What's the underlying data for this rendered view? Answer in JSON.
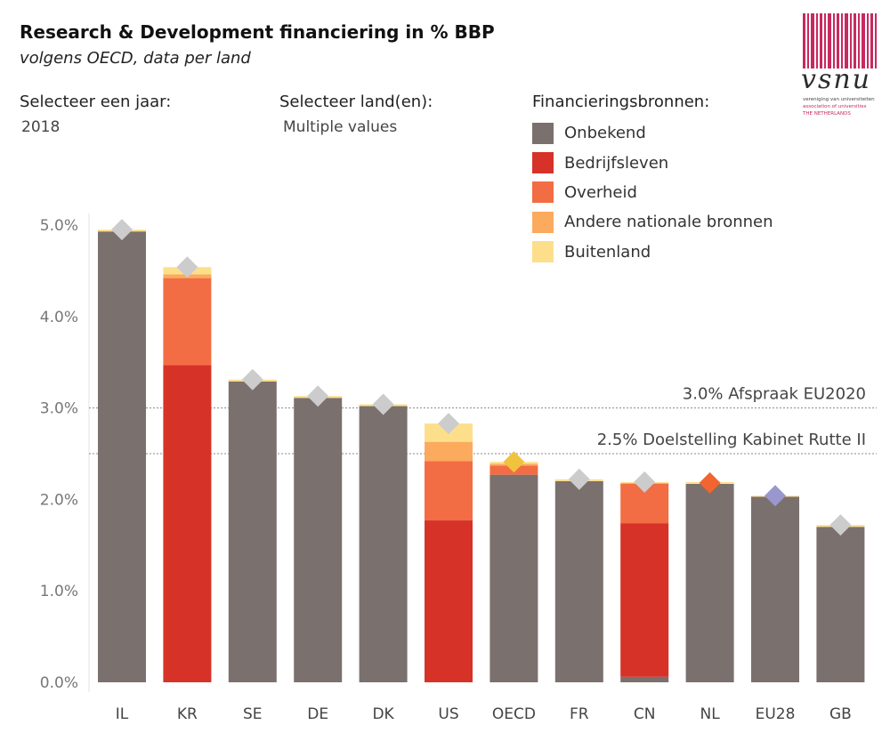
{
  "header": {
    "title": "Research & Development financiering in % BBP",
    "subtitle": "volgens OECD,  data per land"
  },
  "filters": {
    "year_label": "Selecteer een jaar:",
    "year_value": "2018",
    "country_label": "Selecteer land(en):",
    "country_value": "Multiple values"
  },
  "legend": {
    "title": "Financieringsbronnen:",
    "items": [
      {
        "label": "Onbekend",
        "color": "#7a706d"
      },
      {
        "label": "Bedrijfsleven",
        "color": "#d63228"
      },
      {
        "label": "Overheid",
        "color": "#f26d43"
      },
      {
        "label": "Andere nationale bronnen",
        "color": "#fbaa5e"
      },
      {
        "label": "Buitenland",
        "color": "#fddf8b"
      }
    ]
  },
  "logo": {
    "text": "vsnu",
    "line1": "vereniging van universiteiten",
    "line2": "association of universities",
    "line3": "THE NETHERLANDS"
  },
  "chart_data": {
    "type": "bar",
    "stacked": true,
    "categories": [
      "IL",
      "KR",
      "SE",
      "DE",
      "DK",
      "US",
      "OECD",
      "FR",
      "CN",
      "NL",
      "EU28",
      "GB"
    ],
    "series": [
      {
        "name": "Onbekend",
        "color": "#7a706d",
        "values": [
          4.93,
          0,
          3.29,
          3.11,
          3.02,
          0,
          2.27,
          2.2,
          0.06,
          2.17,
          2.03,
          1.7
        ]
      },
      {
        "name": "Bedrijfsleven",
        "color": "#d63228",
        "values": [
          0,
          3.47,
          0,
          0,
          0,
          1.77,
          0,
          0,
          1.68,
          0,
          0,
          0
        ]
      },
      {
        "name": "Overheid",
        "color": "#f26d43",
        "values": [
          0,
          0.95,
          0,
          0,
          0,
          0.65,
          0.1,
          0,
          0.43,
          0,
          0,
          0
        ]
      },
      {
        "name": "Andere nationale bronnen",
        "color": "#fbaa5e",
        "values": [
          0,
          0.04,
          0,
          0,
          0,
          0.21,
          0.02,
          0,
          0.01,
          0,
          0,
          0
        ]
      },
      {
        "name": "Buitenland",
        "color": "#fddf8b",
        "values": [
          0.02,
          0.08,
          0.02,
          0.02,
          0.02,
          0.2,
          0.02,
          0.02,
          0.01,
          0.02,
          0.01,
          0.02
        ]
      }
    ],
    "totals": [
      4.95,
      4.54,
      3.31,
      3.13,
      3.04,
      2.83,
      2.41,
      2.22,
      2.19,
      2.18,
      2.04,
      1.72
    ],
    "marker_colors": [
      "#cccccc",
      "#cccccc",
      "#cccccc",
      "#cccccc",
      "#cccccc",
      "#cccccc",
      "#f0c33e",
      "#cccccc",
      "#cccccc",
      "#f26430",
      "#9a97cf",
      "#cccccc"
    ],
    "yticks": [
      "0.0%",
      "1.0%",
      "2.0%",
      "3.0%",
      "4.0%",
      "5.0%"
    ],
    "ylim": [
      -0.08,
      5.1
    ],
    "reference_lines": [
      {
        "value": 3.0,
        "label": "3.0% Afspraak EU2020"
      },
      {
        "value": 2.5,
        "label": "2.5% Doelstelling Kabinet Rutte II"
      }
    ]
  }
}
